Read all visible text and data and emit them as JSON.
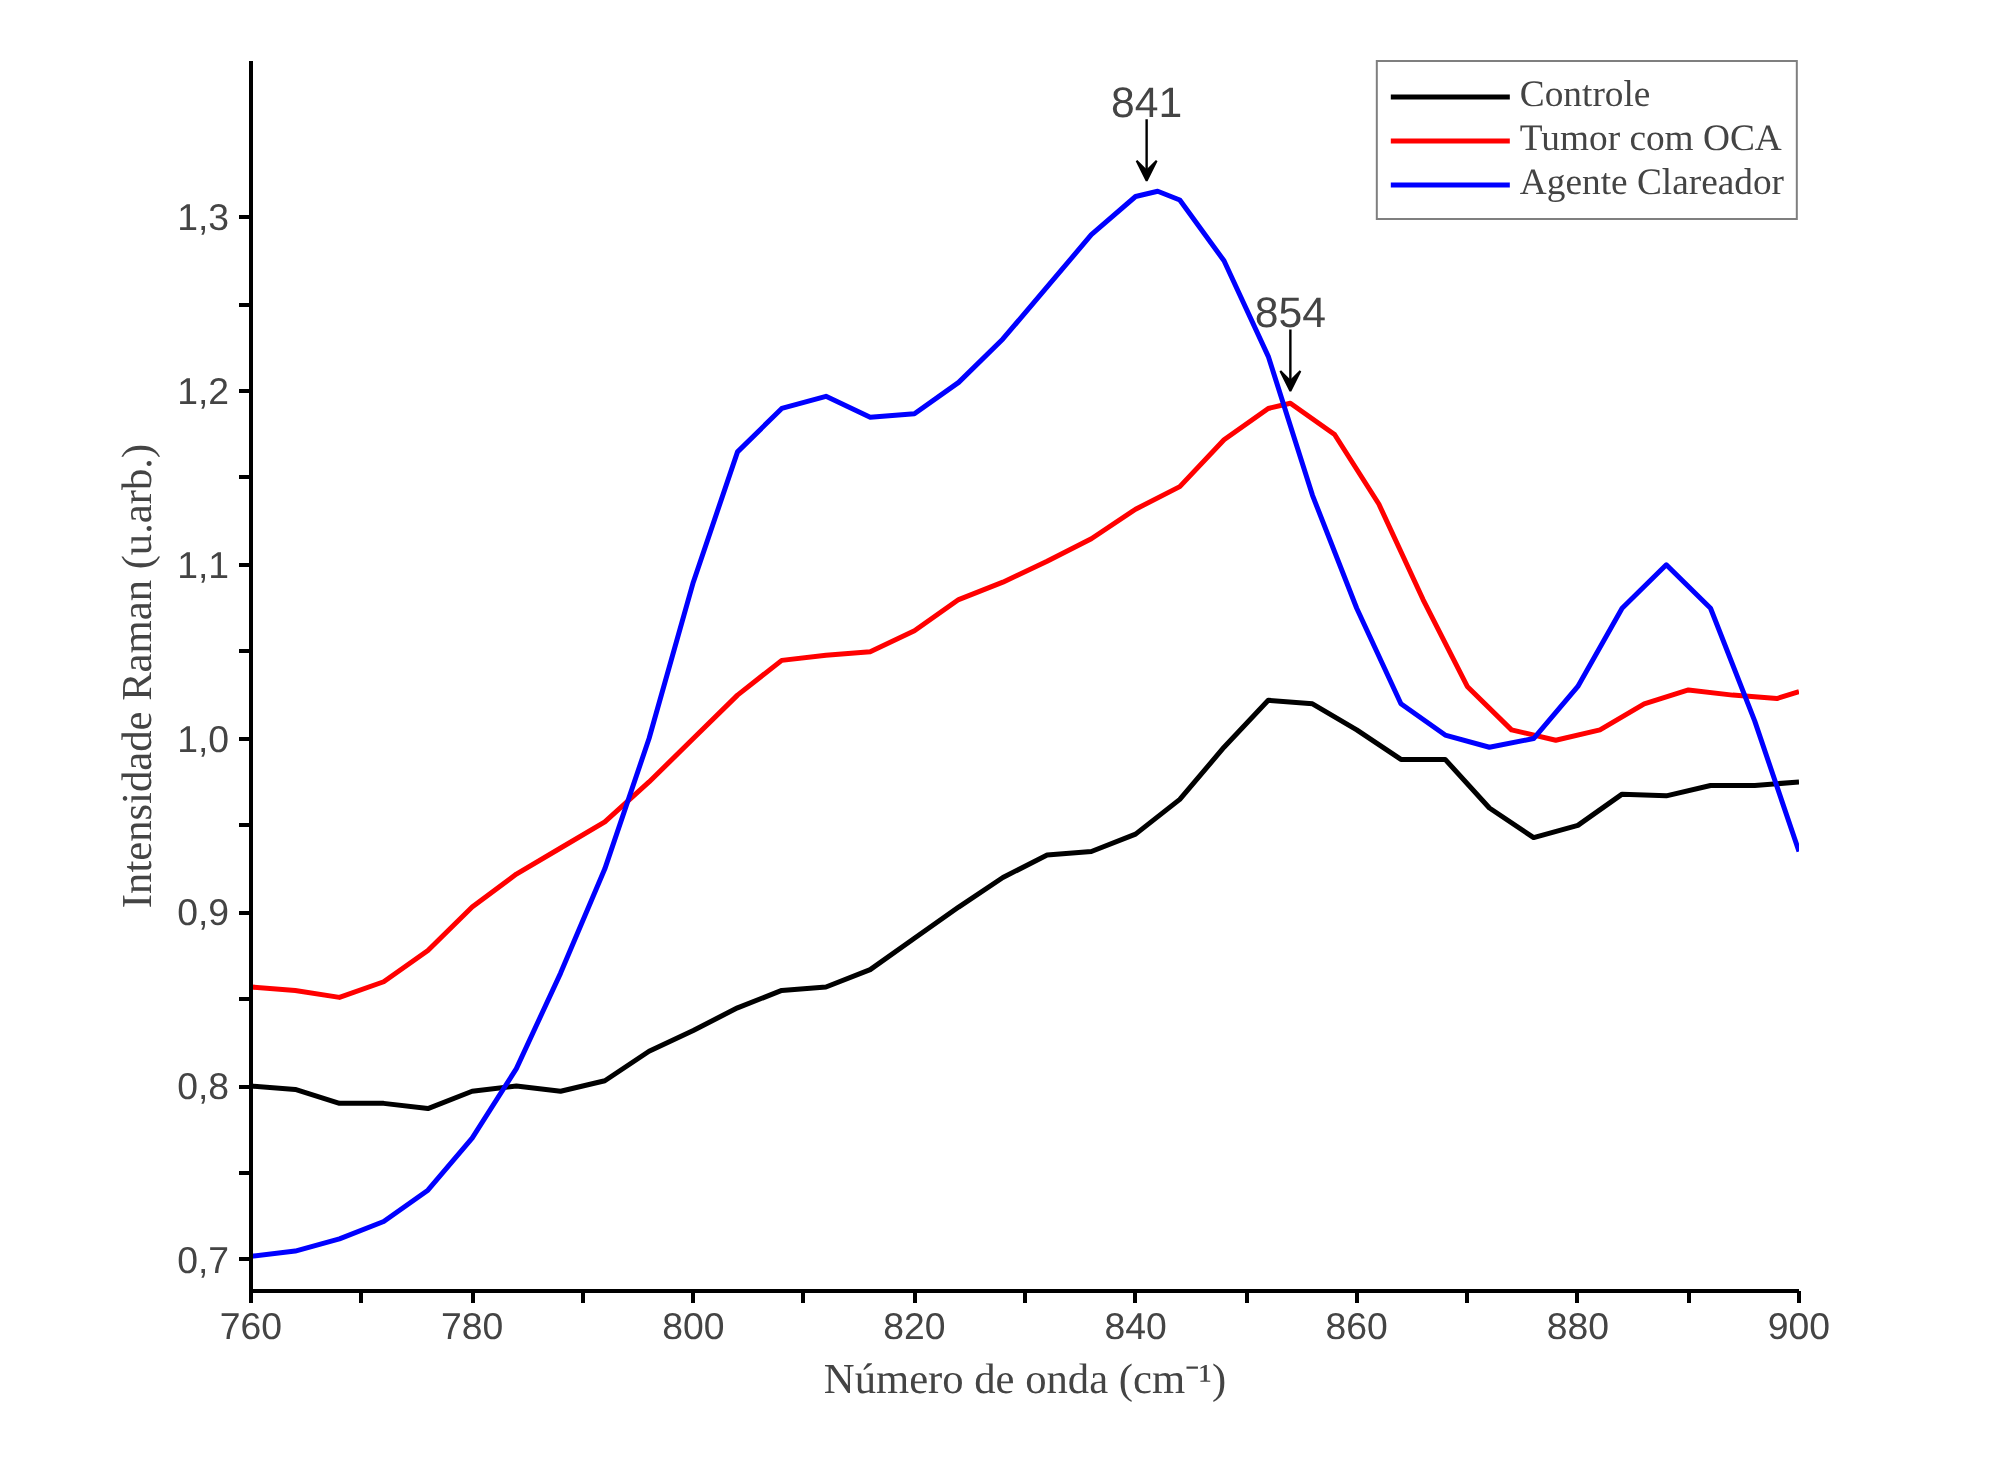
{
  "chart_data": {
    "type": "line",
    "xlabel": "Número de onda (cm⁻¹)",
    "ylabel": "Intensidade Raman (u.arb.)",
    "x": [
      760,
      764,
      768,
      772,
      776,
      780,
      784,
      788,
      792,
      796,
      800,
      804,
      808,
      812,
      816,
      820,
      824,
      828,
      832,
      836,
      840,
      844,
      848,
      852,
      856,
      860,
      864,
      868,
      872,
      876,
      880,
      884,
      888,
      892,
      896,
      900
    ],
    "series": [
      {
        "name": "Controle",
        "color": "#000000",
        "values": [
          0.8,
          0.798,
          0.79,
          0.79,
          0.787,
          0.797,
          0.8,
          0.797,
          0.803,
          0.82,
          0.832,
          0.845,
          0.855,
          0.857,
          0.867,
          0.885,
          0.903,
          0.92,
          0.933,
          0.935,
          0.945,
          0.965,
          0.995,
          1.022,
          1.02,
          1.005,
          0.988,
          0.988,
          0.96,
          0.943,
          0.95,
          0.968,
          0.967,
          0.973,
          0.973,
          0.975
        ]
      },
      {
        "name": "Tumor com OCA",
        "color": "#ff0000",
        "x": [
          760,
          764,
          768,
          772,
          776,
          780,
          784,
          788,
          792,
          796,
          800,
          804,
          808,
          812,
          816,
          820,
          824,
          828,
          832,
          836,
          840,
          844,
          848,
          852,
          854,
          858,
          862,
          866,
          870,
          874,
          878,
          882,
          886,
          890,
          894,
          898,
          900
        ],
        "values": [
          0.857,
          0.855,
          0.851,
          0.86,
          0.878,
          0.903,
          0.922,
          0.937,
          0.952,
          0.975,
          1.0,
          1.025,
          1.045,
          1.048,
          1.05,
          1.062,
          1.08,
          1.09,
          1.102,
          1.115,
          1.132,
          1.145,
          1.172,
          1.19,
          1.193,
          1.175,
          1.135,
          1.08,
          1.03,
          1.005,
          0.999,
          1.005,
          1.02,
          1.028,
          1.025,
          1.023,
          1.027
        ]
      },
      {
        "name": "Agente Clareador",
        "color": "#0000ff",
        "x": [
          760,
          764,
          768,
          772,
          776,
          780,
          784,
          788,
          792,
          796,
          800,
          804,
          808,
          812,
          816,
          820,
          824,
          828,
          832,
          836,
          840,
          842,
          844,
          848,
          852,
          856,
          860,
          864,
          868,
          872,
          876,
          880,
          884,
          888,
          892,
          896,
          900
        ],
        "values": [
          0.702,
          0.705,
          0.712,
          0.722,
          0.74,
          0.77,
          0.81,
          0.865,
          0.925,
          1.0,
          1.09,
          1.165,
          1.19,
          1.197,
          1.185,
          1.187,
          1.205,
          1.23,
          1.26,
          1.29,
          1.312,
          1.315,
          1.31,
          1.275,
          1.22,
          1.14,
          1.075,
          1.02,
          1.002,
          0.995,
          1.0,
          1.03,
          1.075,
          1.1,
          1.075,
          1.01,
          0.935
        ]
      }
    ],
    "annotations": [
      {
        "text": "841",
        "x": 841,
        "y": 1.314
      },
      {
        "text": "854",
        "x": 854,
        "y": 1.193
      }
    ],
    "xlim": [
      760,
      900
    ],
    "ylim": [
      0.682,
      1.39
    ],
    "xticks": [
      760,
      {
        "value": 770,
        "label": null
      },
      780,
      {
        "value": 790,
        "label": null
      },
      800,
      {
        "value": 810,
        "label": null
      },
      820,
      {
        "value": 830,
        "label": null
      },
      840,
      {
        "value": 850,
        "label": null
      },
      860,
      {
        "value": 870,
        "label": null
      },
      880,
      {
        "value": 890,
        "label": null
      },
      900
    ],
    "yticks": [
      {
        "value": 0.7,
        "label": "0,7"
      },
      {
        "value": 0.75,
        "label": null
      },
      {
        "value": 0.8,
        "label": "0,8"
      },
      {
        "value": 0.85,
        "label": null
      },
      {
        "value": 0.9,
        "label": "0,9"
      },
      {
        "value": 0.95,
        "label": null
      },
      {
        "value": 1.0,
        "label": "1,0"
      },
      {
        "value": 1.05,
        "label": null
      },
      {
        "value": 1.1,
        "label": "1,1"
      },
      {
        "value": 1.15,
        "label": null
      },
      {
        "value": 1.2,
        "label": "1,2"
      },
      {
        "value": 1.25,
        "label": null
      },
      {
        "value": 1.3,
        "label": "1,3"
      }
    ],
    "grid": false,
    "legend": "top right",
    "marker": "none",
    "line_style": "solid"
  }
}
